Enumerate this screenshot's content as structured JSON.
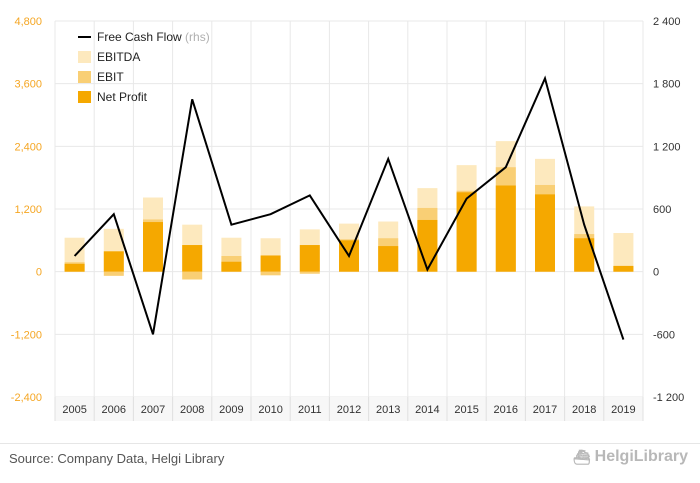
{
  "chart_data": {
    "type": "bar",
    "categories": [
      "2005",
      "2006",
      "2007",
      "2008",
      "2009",
      "2010",
      "2011",
      "2012",
      "2013",
      "2014",
      "2015",
      "2016",
      "2017",
      "2018",
      "2019"
    ],
    "series": [
      {
        "name": "EBITDA",
        "axis": "left",
        "color": "#fde9be",
        "values": [
          650,
          820,
          1420,
          900,
          650,
          640,
          810,
          920,
          960,
          1600,
          2040,
          2500,
          2160,
          1250,
          740
        ]
      },
      {
        "name": "EBIT",
        "axis": "left",
        "color": "#f9cf75",
        "values": [
          180,
          -80,
          1000,
          -150,
          300,
          -70,
          -40,
          620,
          640,
          1220,
          1550,
          2000,
          1660,
          720,
          110
        ]
      },
      {
        "name": "Net Profit",
        "axis": "left",
        "color": "#f5a800",
        "values": [
          150,
          390,
          950,
          510,
          190,
          310,
          510,
          600,
          490,
          990,
          1520,
          1650,
          1480,
          640,
          110
        ]
      },
      {
        "name": "Free Cash Flow",
        "name_suffix": "(rhs)",
        "axis": "right",
        "type": "line",
        "color": "#000000",
        "values": [
          150,
          550,
          -600,
          1650,
          450,
          550,
          730,
          150,
          1080,
          20,
          700,
          1000,
          1850,
          450,
          -650
        ]
      }
    ],
    "y_left": {
      "min": -2400,
      "max": 4800,
      "ticks": [
        "-2,400",
        "-1,200",
        "0",
        "1,200",
        "2,400",
        "3,600",
        "4,800"
      ],
      "tick_values": [
        -2400,
        -1200,
        0,
        1200,
        2400,
        3600,
        4800
      ]
    },
    "y_right": {
      "min": -1200,
      "max": 2400,
      "ticks": [
        "-1 200",
        "-600",
        "0",
        "600",
        "1 200",
        "1 800",
        "2 400"
      ],
      "tick_values": [
        -1200,
        -600,
        0,
        600,
        1200,
        1800,
        2400
      ]
    },
    "grid": true,
    "legend_position": "top-left",
    "legend_order": [
      "Free Cash Flow",
      "EBITDA",
      "EBIT",
      "Net Profit"
    ]
  },
  "footer": {
    "source": "Source: Company Data, Helgi Library",
    "brand": "HelgiLibrary",
    "brand_icon": "ship-logo-icon"
  }
}
